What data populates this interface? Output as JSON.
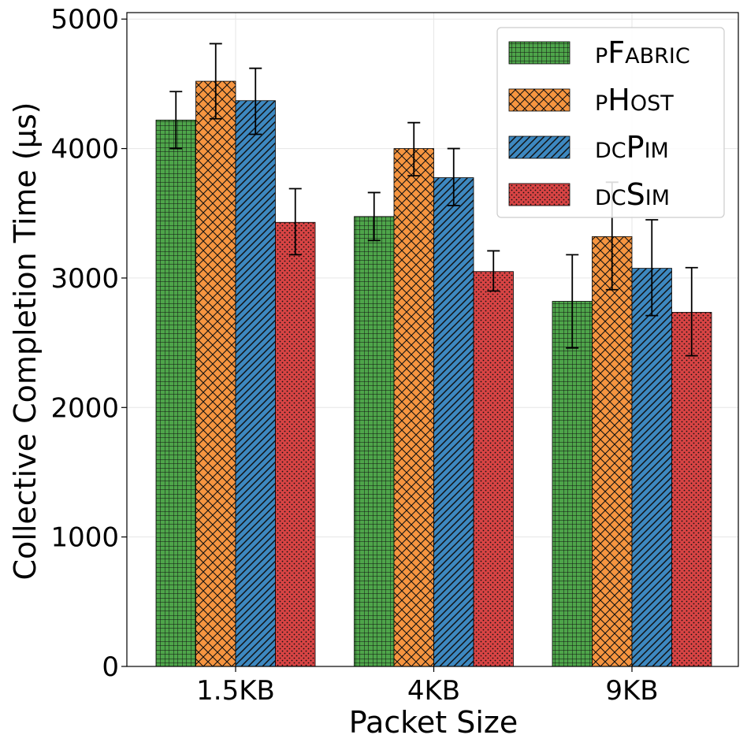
{
  "chart_data": {
    "type": "bar",
    "xlabel": "Packet Size",
    "ylabel": "Collective Completion Time (µs)",
    "categories": [
      "1.5KB",
      "4KB",
      "9KB"
    ],
    "ylim": [
      0,
      5050
    ],
    "yticks": [
      0,
      1000,
      2000,
      3000,
      4000,
      5000
    ],
    "grid": true,
    "legend_position": "top-right",
    "series": [
      {
        "name": "pFabric",
        "legend_parts": [
          {
            "t": "p",
            "small": true
          },
          {
            "t": "F",
            "small": false
          },
          {
            "t": "abric",
            "small": true
          }
        ],
        "color": "#4ea54a",
        "pattern": "grid",
        "values": [
          4220,
          3475,
          2820
        ],
        "errors": [
          [
            4000,
            4440
          ],
          [
            3290,
            3660
          ],
          [
            2460,
            3180
          ]
        ]
      },
      {
        "name": "pHost",
        "legend_parts": [
          {
            "t": "p",
            "small": true
          },
          {
            "t": "H",
            "small": false
          },
          {
            "t": "ost",
            "small": true
          }
        ],
        "color": "#f69540",
        "pattern": "crosshatch",
        "values": [
          4520,
          4000,
          3320
        ],
        "errors": [
          [
            4230,
            4810
          ],
          [
            3790,
            4200
          ],
          [
            2910,
            3740
          ]
        ]
      },
      {
        "name": "dcPim",
        "legend_parts": [
          {
            "t": "dc",
            "small": true
          },
          {
            "t": "P",
            "small": false
          },
          {
            "t": "im",
            "small": true
          }
        ],
        "color": "#3d88c0",
        "pattern": "diagonal",
        "values": [
          4370,
          3775,
          3075
        ],
        "errors": [
          [
            4110,
            4620
          ],
          [
            3560,
            4000
          ],
          [
            2710,
            3450
          ]
        ]
      },
      {
        "name": "dcSim",
        "legend_parts": [
          {
            "t": "dc",
            "small": true
          },
          {
            "t": "S",
            "small": false
          },
          {
            "t": "im",
            "small": true
          }
        ],
        "color": "#d84444",
        "pattern": "dots",
        "values": [
          3430,
          3050,
          2735
        ],
        "errors": [
          [
            3180,
            3690
          ],
          [
            2900,
            3210
          ],
          [
            2400,
            3080
          ]
        ]
      }
    ]
  }
}
